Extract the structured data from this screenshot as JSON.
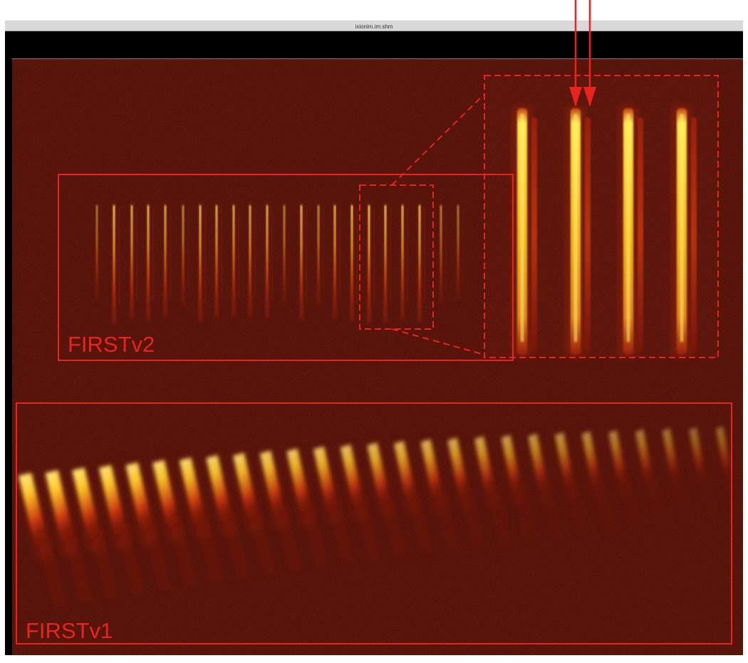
{
  "window": {
    "title": "ixionim.im.shm"
  },
  "panels": {
    "v2": {
      "label": "FIRSTv2"
    },
    "v1": {
      "label": "FIRSTv1"
    }
  },
  "colors": {
    "annotation": "#e8241f",
    "background": "#3a0703",
    "bright_trace": "#ffe23a",
    "titlebar": "#d9d9d9",
    "window_black": "#000000"
  }
}
